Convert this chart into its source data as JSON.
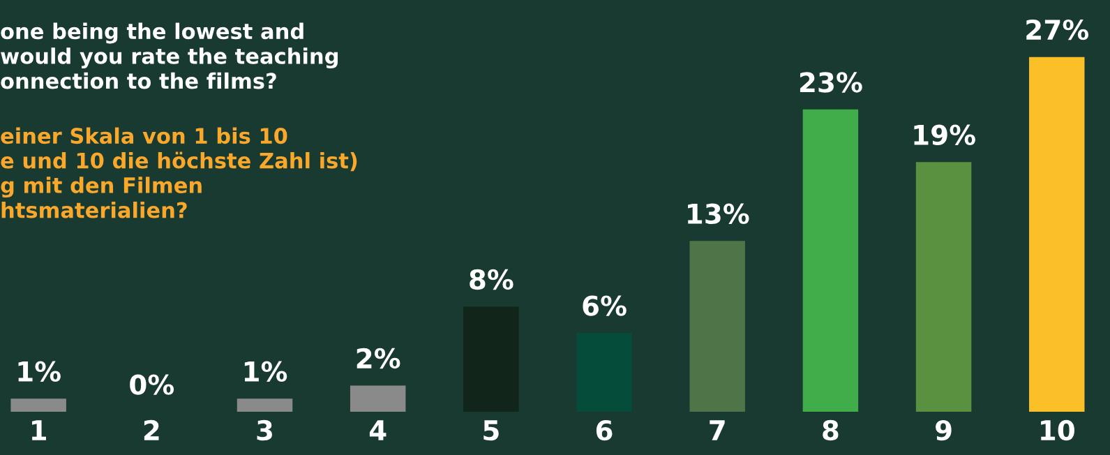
{
  "chart_data": {
    "type": "bar",
    "title": "one being the lowest and\nwould you rate the teaching\nonnection to the films?",
    "subtitle": "einer Skala von 1 bis 10\ne und 10 die höchste Zahl ist)\ng mit den Filmen\nhtsmaterialien?",
    "categories": [
      "1",
      "2",
      "3",
      "4",
      "5",
      "6",
      "7",
      "8",
      "9",
      "10"
    ],
    "values": [
      1,
      0,
      1,
      2,
      8,
      6,
      13,
      23,
      19,
      27
    ],
    "colors": [
      "#8a8a8a",
      "#8a8a8a",
      "#8a8a8a",
      "#8a8a8a",
      "#11251b",
      "#054c3b",
      "#4e7448",
      "#41ad4a",
      "#5a9140",
      "#fbbf28"
    ],
    "value_labels": [
      "1%",
      "0%",
      "1%",
      "2%",
      "8%",
      "6%",
      "13%",
      "23%",
      "19%",
      "27%"
    ],
    "grid": false,
    "legend": false
  }
}
